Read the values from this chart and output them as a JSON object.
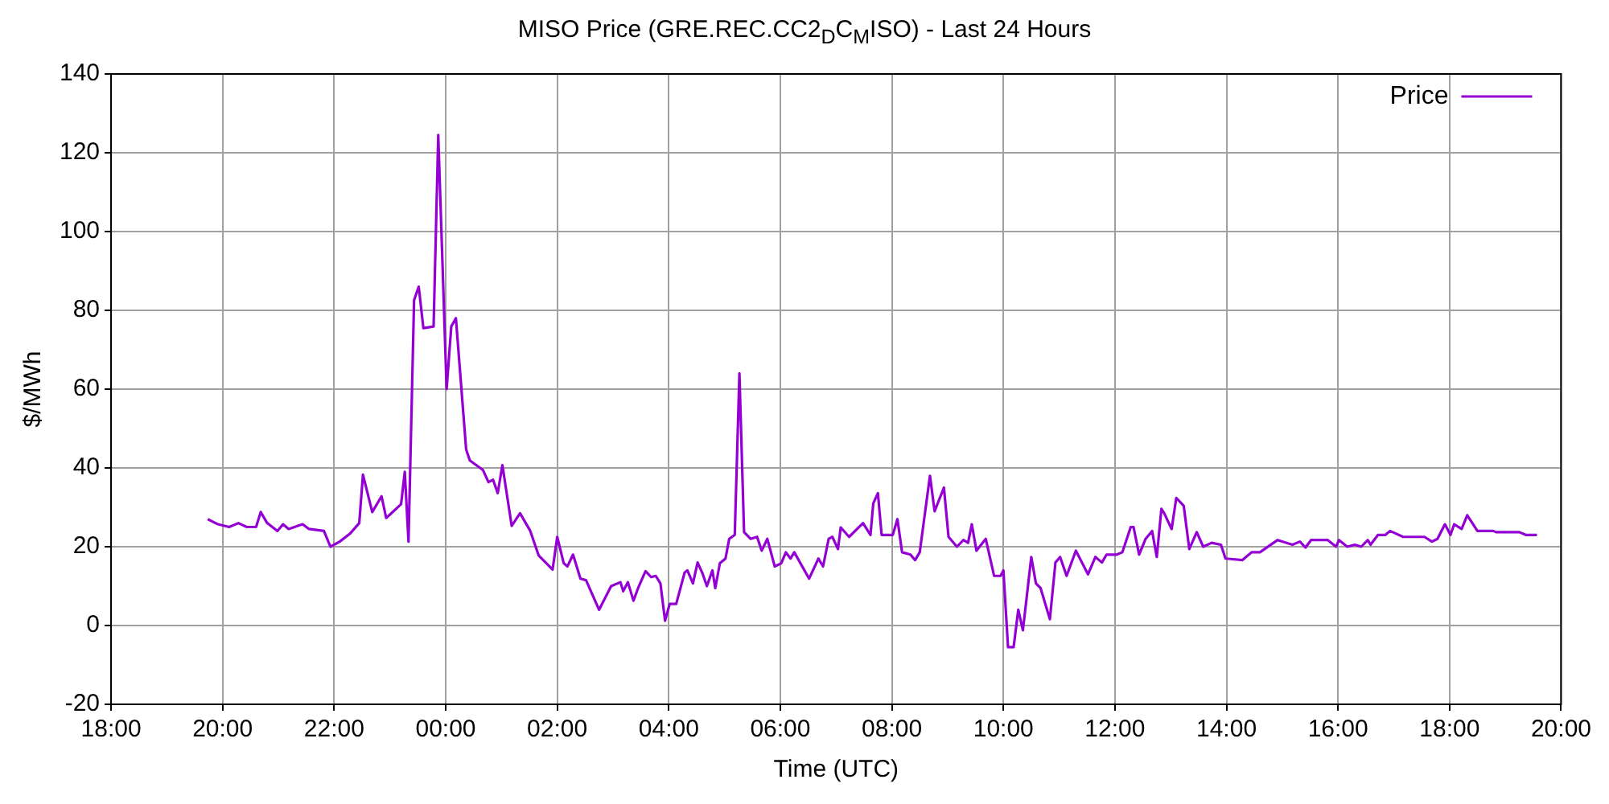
{
  "chart_data": {
    "type": "line",
    "title": "MISO Price (GRE.REC.CC2$_{D}$C$_{M}$ISO) - Last 24 Hours",
    "xlabel": "Time (UTC)",
    "ylabel": "$/MWh",
    "xlim": [
      "2000-01-01T18:00",
      "2000-01-02T20:00"
    ],
    "xticks": [
      {
        "value": "2000-01-01T18:00",
        "label": "18:00"
      },
      {
        "value": "2000-01-01T20:00",
        "label": "20:00"
      },
      {
        "value": "2000-01-01T22:00",
        "label": "22:00"
      },
      {
        "value": "2000-01-02T00:00",
        "label": "00:00"
      },
      {
        "value": "2000-01-02T02:00",
        "label": "02:00"
      },
      {
        "value": "2000-01-02T04:00",
        "label": "04:00"
      },
      {
        "value": "2000-01-02T06:00",
        "label": "06:00"
      },
      {
        "value": "2000-01-02T08:00",
        "label": "08:00"
      },
      {
        "value": "2000-01-02T10:00",
        "label": "10:00"
      },
      {
        "value": "2000-01-02T12:00",
        "label": "12:00"
      },
      {
        "value": "2000-01-02T14:00",
        "label": "14:00"
      },
      {
        "value": "2000-01-02T16:00",
        "label": "16:00"
      },
      {
        "value": "2000-01-02T18:00",
        "label": "18:00"
      },
      {
        "value": "2000-01-02T20:00",
        "label": "20:00"
      }
    ],
    "ylim": [
      -20,
      140
    ],
    "yticks": [
      -20,
      0,
      20,
      40,
      60,
      80,
      100,
      120,
      140
    ],
    "grid": true,
    "legend": "top right",
    "marker": "none",
    "line_style": "solid",
    "series": [
      {
        "name": "Price",
        "color": "#9400d3",
        "x": [
          "2000-01-01T19:44",
          "2000-01-01T19:55",
          "2000-01-01T20:07",
          "2000-01-01T20:17",
          "2000-01-01T20:26",
          "2000-01-01T20:36",
          "2000-01-01T20:41",
          "2000-01-01T20:48",
          "2000-01-01T20:59",
          "2000-01-01T21:05",
          "2000-01-01T21:11",
          "2000-01-01T21:26",
          "2000-01-01T21:33",
          "2000-01-01T21:49",
          "2000-01-01T21:56",
          "2000-01-01T22:06",
          "2000-01-01T22:17",
          "2000-01-01T22:27",
          "2000-01-01T22:31",
          "2000-01-01T22:41",
          "2000-01-01T22:51",
          "2000-01-01T22:56",
          "2000-01-01T23:12",
          "2000-01-01T23:16",
          "2000-01-01T23:20",
          "2000-01-01T23:26",
          "2000-01-01T23:31",
          "2000-01-01T23:36",
          "2000-01-01T23:47",
          "2000-01-01T23:52",
          "2000-01-02T00:01",
          "2000-01-02T00:06",
          "2000-01-02T00:11",
          "2000-01-02T00:22",
          "2000-01-02T00:26",
          "2000-01-02T00:40",
          "2000-01-02T00:46",
          "2000-01-02T00:51",
          "2000-01-02T00:56",
          "2000-01-02T01:01",
          "2000-01-02T01:11",
          "2000-01-02T01:20",
          "2000-01-02T01:31",
          "2000-01-02T01:40",
          "2000-01-02T01:55",
          "2000-01-02T02:00",
          "2000-01-02T02:07",
          "2000-01-02T02:11",
          "2000-01-02T02:17",
          "2000-01-02T02:25",
          "2000-01-02T02:31",
          "2000-01-02T02:45",
          "2000-01-02T02:58",
          "2000-01-02T03:08",
          "2000-01-02T03:11",
          "2000-01-02T03:16",
          "2000-01-02T03:22",
          "2000-01-02T03:27",
          "2000-01-02T03:35",
          "2000-01-02T03:41",
          "2000-01-02T03:46",
          "2000-01-02T03:51",
          "2000-01-02T03:56",
          "2000-01-02T04:01",
          "2000-01-02T04:08",
          "2000-01-02T04:17",
          "2000-01-02T04:20",
          "2000-01-02T04:26",
          "2000-01-02T04:31",
          "2000-01-02T04:36",
          "2000-01-02T04:41",
          "2000-01-02T04:47",
          "2000-01-02T04:50",
          "2000-01-02T04:55",
          "2000-01-02T05:01",
          "2000-01-02T05:05",
          "2000-01-02T05:11",
          "2000-01-02T05:16",
          "2000-01-02T05:21",
          "2000-01-02T05:28",
          "2000-01-02T05:35",
          "2000-01-02T05:40",
          "2000-01-02T05:46",
          "2000-01-02T05:54",
          "2000-01-02T06:01",
          "2000-01-02T06:06",
          "2000-01-02T06:11",
          "2000-01-02T06:15",
          "2000-01-02T06:31",
          "2000-01-02T06:41",
          "2000-01-02T06:46",
          "2000-01-02T06:52",
          "2000-01-02T06:56",
          "2000-01-02T07:02",
          "2000-01-02T07:05",
          "2000-01-02T07:14",
          "2000-01-02T07:29",
          "2000-01-02T07:37",
          "2000-01-02T07:40",
          "2000-01-02T07:45",
          "2000-01-02T07:49",
          "2000-01-02T08:01",
          "2000-01-02T08:06",
          "2000-01-02T08:11",
          "2000-01-02T08:20",
          "2000-01-02T08:25",
          "2000-01-02T08:30",
          "2000-01-02T08:41",
          "2000-01-02T08:46",
          "2000-01-02T08:56",
          "2000-01-02T09:01",
          "2000-01-02T09:10",
          "2000-01-02T09:17",
          "2000-01-02T09:22",
          "2000-01-02T09:26",
          "2000-01-02T09:31",
          "2000-01-02T09:41",
          "2000-01-02T09:50",
          "2000-01-02T09:57",
          "2000-01-02T10:00",
          "2000-01-02T10:05",
          "2000-01-02T10:11",
          "2000-01-02T10:16",
          "2000-01-02T10:21",
          "2000-01-02T10:30",
          "2000-01-02T10:35",
          "2000-01-02T10:40",
          "2000-01-02T10:50",
          "2000-01-02T10:56",
          "2000-01-02T11:01",
          "2000-01-02T11:08",
          "2000-01-02T11:18",
          "2000-01-02T11:31",
          "2000-01-02T11:39",
          "2000-01-02T11:46",
          "2000-01-02T11:51",
          "2000-01-02T12:02",
          "2000-01-02T12:08",
          "2000-01-02T12:17",
          "2000-01-02T12:20",
          "2000-01-02T12:26",
          "2000-01-02T12:33",
          "2000-01-02T12:40",
          "2000-01-02T12:45",
          "2000-01-02T12:50",
          "2000-01-02T12:53",
          "2000-01-02T13:01",
          "2000-01-02T13:06",
          "2000-01-02T13:14",
          "2000-01-02T13:20",
          "2000-01-02T13:28",
          "2000-01-02T13:35",
          "2000-01-02T13:44",
          "2000-01-02T13:54",
          "2000-01-02T13:59",
          "2000-01-02T14:17",
          "2000-01-02T14:27",
          "2000-01-02T14:36",
          "2000-01-02T14:55",
          "2000-01-02T15:11",
          "2000-01-02T15:19",
          "2000-01-02T15:25",
          "2000-01-02T15:31",
          "2000-01-02T15:49",
          "2000-01-02T15:58",
          "2000-01-02T16:01",
          "2000-01-02T16:10",
          "2000-01-02T16:18",
          "2000-01-02T16:25",
          "2000-01-02T16:32",
          "2000-01-02T16:35",
          "2000-01-02T16:43",
          "2000-01-02T16:51",
          "2000-01-02T16:56",
          "2000-01-02T17:10",
          "2000-01-02T17:33",
          "2000-01-02T17:41",
          "2000-01-02T17:47",
          "2000-01-02T17:55",
          "2000-01-02T18:01",
          "2000-01-02T18:05",
          "2000-01-02T18:13",
          "2000-01-02T18:19",
          "2000-01-02T18:30",
          "2000-01-02T18:47",
          "2000-01-02T18:50",
          "2000-01-02T19:15",
          "2000-01-02T19:22",
          "2000-01-02T19:34"
        ],
        "values": [
          27,
          25.7,
          25,
          26,
          25,
          25,
          28.8,
          26,
          24,
          25.7,
          24.5,
          25.7,
          24.5,
          24,
          20,
          21.3,
          23.3,
          26,
          38.3,
          28.8,
          32.8,
          27.3,
          30.8,
          39,
          21.3,
          82.6,
          86,
          75.5,
          75.9,
          124.5,
          60,
          75.9,
          78,
          44.7,
          41.9,
          39.5,
          36.4,
          37,
          33.6,
          40.7,
          25.3,
          28.5,
          24,
          17.8,
          14.2,
          22.5,
          15.8,
          15,
          18,
          11.9,
          11.5,
          4,
          10,
          11,
          8.7,
          11,
          6.3,
          9.5,
          13.8,
          12.3,
          12.6,
          10.7,
          1.2,
          5.5,
          5.5,
          13.4,
          14,
          10.7,
          16,
          13.4,
          10,
          14,
          9.5,
          15.8,
          17,
          22,
          23,
          64,
          23.7,
          22,
          22.5,
          19,
          22,
          15,
          15.8,
          18.6,
          17,
          18.6,
          11.9,
          17,
          15,
          22,
          22.5,
          19.4,
          24.9,
          22.5,
          26,
          23,
          31,
          33.6,
          23,
          23,
          27,
          18.6,
          18,
          16.6,
          18.6,
          38,
          29,
          35,
          22.5,
          20,
          21.7,
          21,
          25.7,
          19,
          22,
          12.6,
          12.6,
          14,
          -5.5,
          -5.5,
          4,
          -1.2,
          17.4,
          10.7,
          9.5,
          1.6,
          16,
          17.4,
          12.6,
          19,
          13,
          17.4,
          16,
          18,
          18,
          18.6,
          25,
          25,
          18,
          22,
          24,
          17.4,
          29.6,
          28.5,
          24.5,
          32.4,
          30.4,
          19.4,
          23.7,
          20,
          21,
          20.5,
          17,
          16.6,
          18.6,
          18.6,
          21.7,
          20.5,
          21.3,
          19.8,
          21.7,
          21.7,
          20,
          21.7,
          20,
          20.5,
          20,
          21.7,
          20.5,
          23,
          23,
          24,
          22.5,
          22.5,
          21.3,
          22,
          25.7,
          23,
          25.7,
          24.5,
          28,
          24,
          24,
          23.7,
          23.7,
          23,
          23
        ]
      }
    ]
  }
}
